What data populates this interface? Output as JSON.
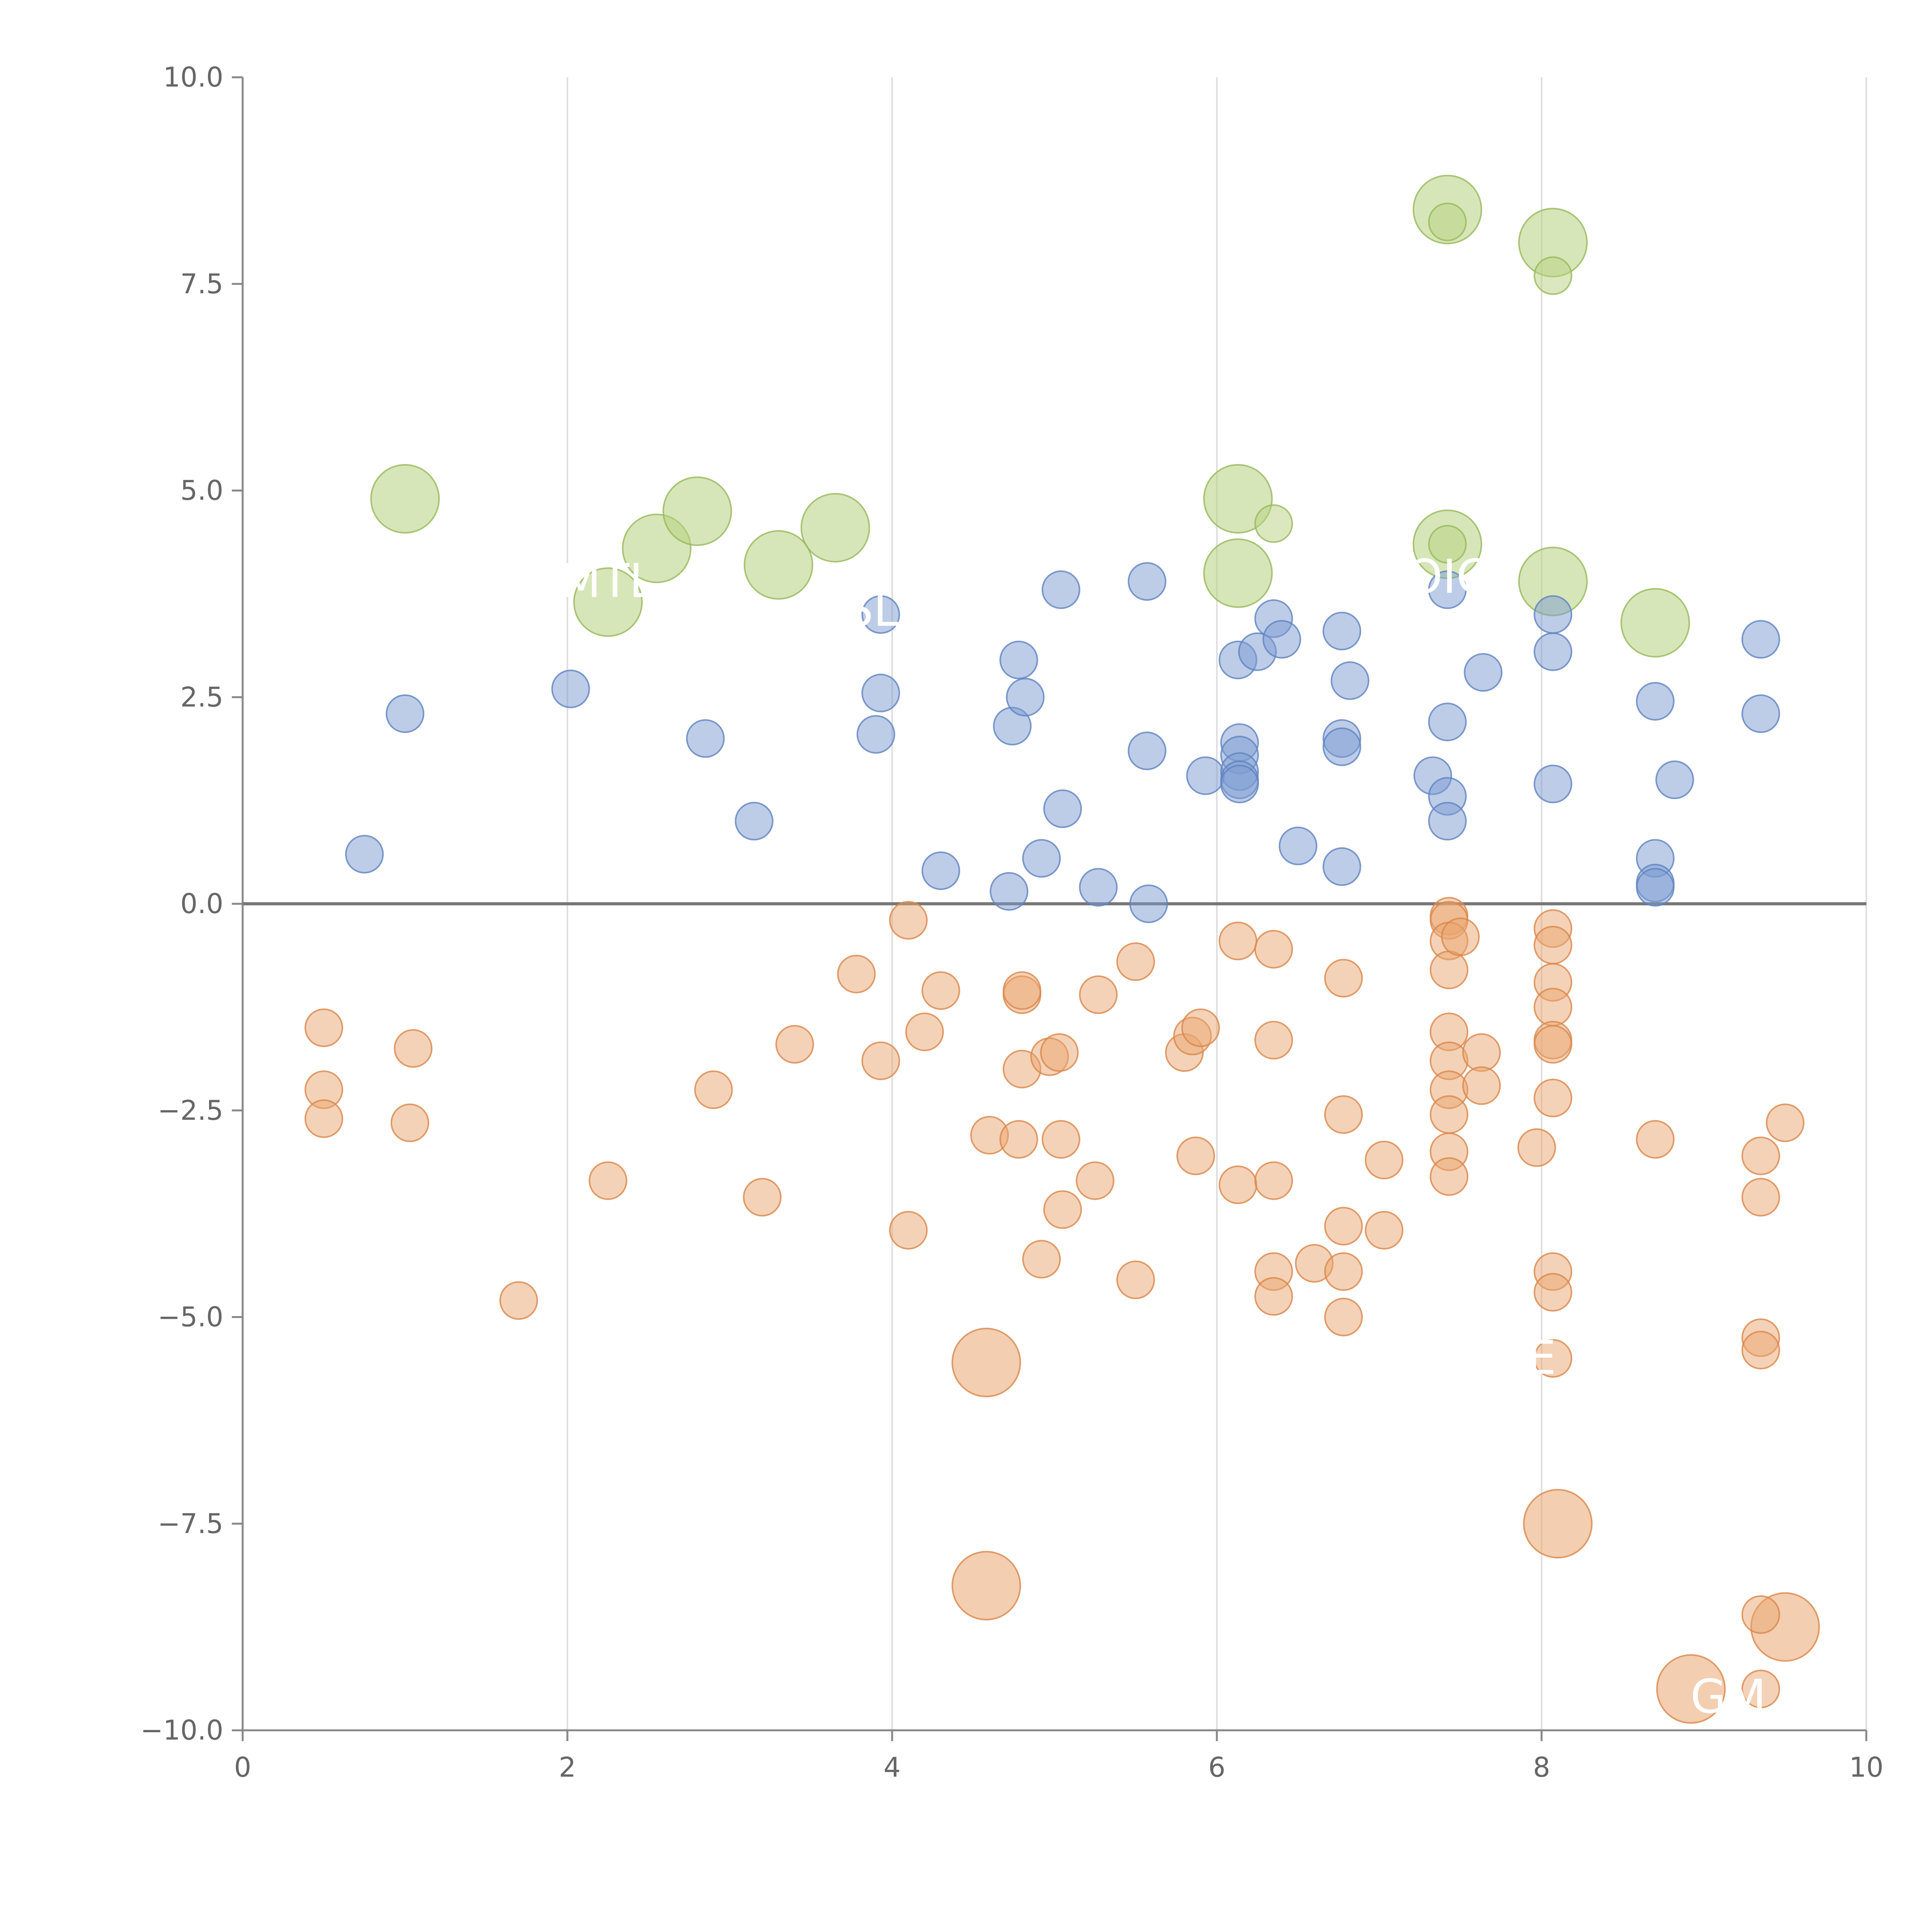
{
  "chart_data": {
    "type": "scatter",
    "title": "",
    "xlabel": "",
    "ylabel": "",
    "xlim": [
      0,
      10
    ],
    "ylim": [
      -10,
      10
    ],
    "x_ticks": [
      0,
      2,
      4,
      6,
      8,
      10
    ],
    "y_ticks": [
      -10,
      -7.5,
      -5,
      -2.5,
      0,
      2.5,
      5,
      7.5,
      10
    ],
    "x_tick_labels": [
      "0",
      "2",
      "4",
      "6",
      "8",
      "10"
    ],
    "y_tick_labels": [
      "−10.0",
      "−7.5",
      "−5.0",
      "−2.5",
      "0.0",
      "2.5",
      "5.0",
      "7.5",
      "10.0"
    ],
    "grid": "vertical",
    "baseline_y": 0,
    "colors": {
      "blue": "#7b9bd1",
      "blue_stroke": "#5f82bf",
      "orange": "#eaa56f",
      "orange_stroke": "#d9864a",
      "green": "#b7d27f",
      "green_stroke": "#97b85a",
      "axis": "#888888",
      "grid": "#dddddd",
      "baseline": "#777777"
    },
    "series": [
      {
        "color": "blue",
        "points": [
          [
            0.75,
            0.6
          ],
          [
            1.0,
            2.3
          ],
          [
            2.02,
            2.6
          ],
          [
            2.85,
            2.0
          ],
          [
            3.15,
            1.0
          ],
          [
            3.9,
            2.05
          ],
          [
            3.93,
            2.55
          ],
          [
            3.93,
            3.5
          ],
          [
            4.3,
            0.4
          ],
          [
            4.72,
            0.15
          ],
          [
            4.74,
            2.15
          ],
          [
            4.78,
            2.95
          ],
          [
            4.82,
            2.5
          ],
          [
            4.92,
            0.55
          ],
          [
            5.04,
            3.8
          ],
          [
            5.05,
            1.15
          ],
          [
            5.27,
            0.2
          ],
          [
            5.57,
            3.9
          ],
          [
            5.57,
            1.85
          ],
          [
            5.58,
            0.0
          ],
          [
            5.93,
            1.55
          ],
          [
            6.13,
            2.95
          ],
          [
            6.14,
            1.95
          ],
          [
            6.14,
            1.8
          ],
          [
            6.14,
            1.6
          ],
          [
            6.14,
            1.5
          ],
          [
            6.14,
            1.45
          ],
          [
            6.25,
            3.05
          ],
          [
            6.35,
            3.45
          ],
          [
            6.4,
            3.2
          ],
          [
            6.5,
            0.7
          ],
          [
            6.77,
            3.3
          ],
          [
            6.77,
            2.0
          ],
          [
            6.77,
            1.9
          ],
          [
            6.77,
            0.45
          ],
          [
            6.82,
            2.7
          ],
          [
            7.33,
            1.55
          ],
          [
            7.42,
            3.8
          ],
          [
            7.42,
            2.2
          ],
          [
            7.42,
            1.3
          ],
          [
            7.42,
            1.0
          ],
          [
            7.64,
            2.8
          ],
          [
            8.07,
            3.5
          ],
          [
            8.07,
            3.05
          ],
          [
            8.07,
            1.45
          ],
          [
            8.7,
            2.45
          ],
          [
            8.7,
            0.55
          ],
          [
            8.7,
            0.25
          ],
          [
            8.7,
            0.2
          ],
          [
            8.82,
            1.5
          ],
          [
            9.35,
            3.2
          ],
          [
            9.35,
            2.3
          ]
        ]
      },
      {
        "color": "orange",
        "points": [
          [
            0.5,
            -1.5
          ],
          [
            0.5,
            -2.25
          ],
          [
            0.5,
            -2.6
          ],
          [
            1.05,
            -1.75
          ],
          [
            1.03,
            -2.65
          ],
          [
            1.7,
            -4.8
          ],
          [
            2.25,
            -3.35
          ],
          [
            2.9,
            -2.25
          ],
          [
            3.2,
            -3.55
          ],
          [
            3.4,
            -1.7
          ],
          [
            3.78,
            -0.85
          ],
          [
            3.93,
            -1.9
          ],
          [
            4.1,
            -0.2
          ],
          [
            4.1,
            -3.95
          ],
          [
            4.2,
            -1.55
          ],
          [
            4.3,
            -1.05
          ],
          [
            4.6,
            -2.8
          ],
          [
            4.78,
            -2.85
          ],
          [
            4.8,
            -1.1
          ],
          [
            4.8,
            -1.05
          ],
          [
            4.8,
            -2.0
          ],
          [
            4.92,
            -4.3
          ],
          [
            4.97,
            -1.85
          ],
          [
            5.03,
            -1.8
          ],
          [
            5.04,
            -2.85
          ],
          [
            5.05,
            -3.7
          ],
          [
            5.25,
            -3.35
          ],
          [
            5.27,
            -1.1
          ],
          [
            5.5,
            -0.7
          ],
          [
            5.5,
            -4.55
          ],
          [
            5.8,
            -1.8
          ],
          [
            5.85,
            -1.6
          ],
          [
            5.87,
            -3.05
          ],
          [
            5.9,
            -1.5
          ],
          [
            6.13,
            -0.45
          ],
          [
            6.13,
            -3.4
          ],
          [
            6.35,
            -0.55
          ],
          [
            6.35,
            -1.65
          ],
          [
            6.35,
            -3.35
          ],
          [
            6.35,
            -4.45
          ],
          [
            6.35,
            -4.75
          ],
          [
            6.6,
            -4.35
          ],
          [
            6.78,
            -0.9
          ],
          [
            6.78,
            -2.55
          ],
          [
            6.78,
            -3.9
          ],
          [
            6.78,
            -4.45
          ],
          [
            6.78,
            -5.0
          ],
          [
            7.03,
            -3.1
          ],
          [
            7.03,
            -3.95
          ],
          [
            7.43,
            -0.15
          ],
          [
            7.43,
            -0.2
          ],
          [
            7.43,
            -0.45
          ],
          [
            7.43,
            -0.8
          ],
          [
            7.43,
            -1.55
          ],
          [
            7.43,
            -1.9
          ],
          [
            7.43,
            -2.25
          ],
          [
            7.43,
            -2.55
          ],
          [
            7.43,
            -3.0
          ],
          [
            7.43,
            -3.3
          ],
          [
            7.5,
            -0.4
          ],
          [
            7.63,
            -1.8
          ],
          [
            7.63,
            -2.2
          ],
          [
            7.97,
            -2.95
          ],
          [
            8.07,
            -0.3
          ],
          [
            8.07,
            -0.5
          ],
          [
            8.07,
            -0.95
          ],
          [
            8.07,
            -1.25
          ],
          [
            8.07,
            -1.65
          ],
          [
            8.07,
            -1.7
          ],
          [
            8.07,
            -2.35
          ],
          [
            8.07,
            -4.45
          ],
          [
            8.07,
            -4.7
          ],
          [
            8.07,
            -5.5
          ],
          [
            8.7,
            -2.85
          ],
          [
            9.35,
            -3.05
          ],
          [
            9.35,
            -3.55
          ],
          [
            9.35,
            -5.25
          ],
          [
            9.35,
            -5.4
          ],
          [
            9.35,
            -8.6
          ],
          [
            9.35,
            -9.5
          ],
          [
            9.5,
            -2.65
          ]
        ]
      },
      {
        "color": "green",
        "points": [
          [
            6.35,
            4.6
          ],
          [
            7.42,
            4.35
          ],
          [
            7.42,
            8.25
          ],
          [
            8.07,
            7.6
          ]
        ]
      }
    ],
    "large_bubbles": [
      {
        "x": 1.0,
        "y": 4.9,
        "color": "green",
        "label": ""
      },
      {
        "x": 2.25,
        "y": 3.65,
        "color": "green",
        "label": "MTL"
      },
      {
        "x": 2.55,
        "y": 4.3,
        "color": "green",
        "label": ""
      },
      {
        "x": 2.8,
        "y": 4.75,
        "color": "green",
        "label": ""
      },
      {
        "x": 3.3,
        "y": 4.1,
        "color": "green",
        "label": ""
      },
      {
        "x": 3.65,
        "y": 4.55,
        "color": "green",
        "label": ""
      },
      {
        "x": 6.13,
        "y": 4.9,
        "color": "green",
        "label": ""
      },
      {
        "x": 6.13,
        "y": 4.0,
        "color": "green",
        "label": ""
      },
      {
        "x": 7.42,
        "y": 4.35,
        "color": "green",
        "label": ""
      },
      {
        "x": 8.07,
        "y": 3.9,
        "color": "green",
        "label": ""
      },
      {
        "x": 8.7,
        "y": 3.4,
        "color": "green",
        "label": ""
      },
      {
        "x": 7.42,
        "y": 8.4,
        "color": "green",
        "label": ""
      },
      {
        "x": 8.07,
        "y": 8.0,
        "color": "green",
        "label": ""
      },
      {
        "x": 4.58,
        "y": -5.55,
        "color": "orange",
        "label": ""
      },
      {
        "x": 4.58,
        "y": -8.25,
        "color": "orange",
        "label": ""
      },
      {
        "x": 8.1,
        "y": -7.5,
        "color": "orange",
        "label": ""
      },
      {
        "x": 9.5,
        "y": -8.75,
        "color": "orange",
        "label": ""
      },
      {
        "x": 8.92,
        "y": -9.5,
        "color": "orange",
        "label": "GM"
      }
    ],
    "annotations": [
      {
        "text": "MTL",
        "x": 2.25,
        "y": 3.9
      },
      {
        "text": "MSL",
        "x": 3.75,
        "y": 3.55
      },
      {
        "text": "OIC",
        "x": 7.42,
        "y": 3.95
      },
      {
        "text": "E",
        "x": 8.0,
        "y": -5.5
      },
      {
        "text": "GM",
        "x": 9.15,
        "y": -9.6
      }
    ]
  }
}
